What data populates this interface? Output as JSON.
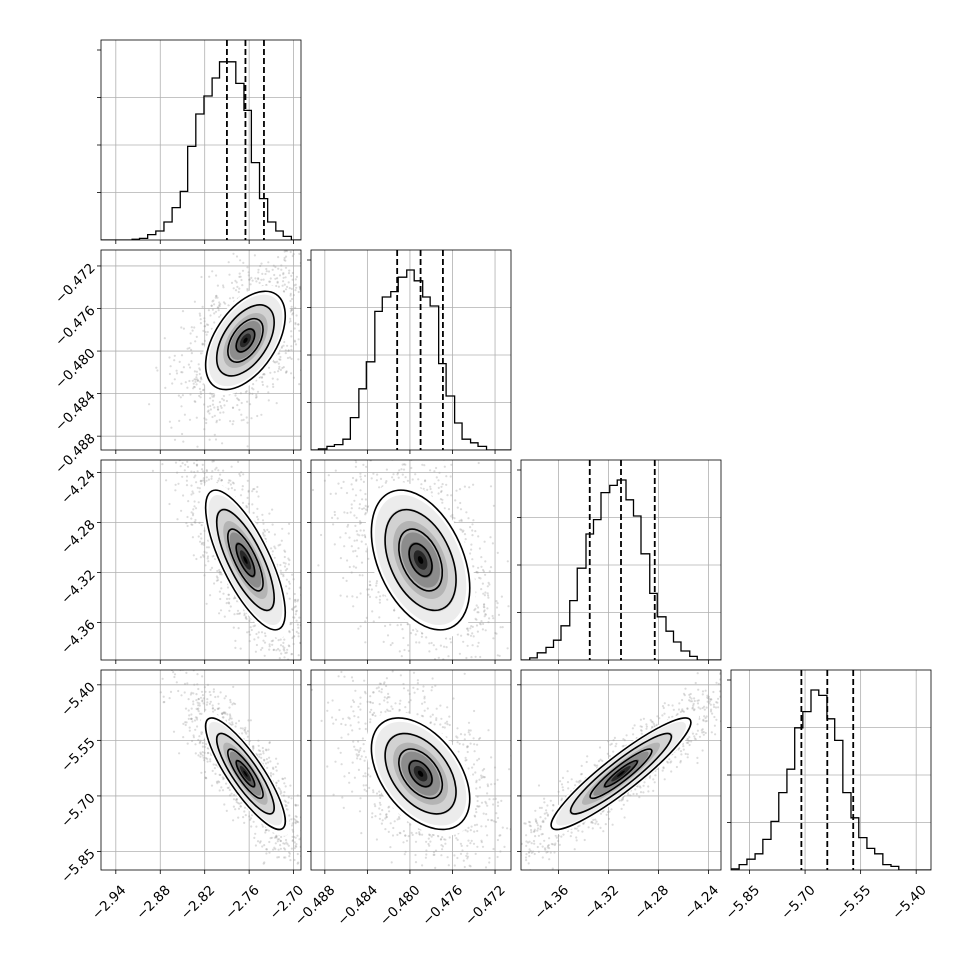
{
  "chart_data": {
    "type": "corner",
    "grid": true,
    "parameters": [
      {
        "range": [
          -2.96,
          -2.69
        ],
        "ticks": [
          -2.94,
          -2.88,
          -2.82,
          -2.76,
          -2.7
        ],
        "tick_labels": [
          "−2.94",
          "−2.88",
          "−2.82",
          "−2.76",
          "−2.70"
        ],
        "quantiles": [
          -2.79,
          -2.765,
          -2.74
        ],
        "hist_bins": [
          -2.96,
          -2.95,
          -2.94,
          -2.929,
          -2.918,
          -2.908,
          -2.897,
          -2.886,
          -2.875,
          -2.864,
          -2.853,
          -2.843,
          -2.832,
          -2.821,
          -2.81,
          -2.8,
          -2.789,
          -2.778,
          -2.767,
          -2.757,
          -2.746,
          -2.735,
          -2.724,
          -2.714,
          -2.703,
          -2.69
        ],
        "hist_values": [
          0.0,
          0.0,
          0.0,
          0.0,
          0.004,
          0.009,
          0.03,
          0.05,
          0.1,
          0.18,
          0.27,
          0.52,
          0.7,
          0.8,
          0.9,
          0.99,
          0.99,
          0.87,
          0.72,
          0.43,
          0.23,
          0.1,
          0.05,
          0.02,
          0.0
        ]
      },
      {
        "range": [
          -0.4893,
          -0.4705
        ],
        "ticks": [
          -0.488,
          -0.484,
          -0.48,
          -0.476,
          -0.472
        ],
        "tick_labels": [
          "−0.488",
          "−0.484",
          "−0.480",
          "−0.476",
          "−0.472"
        ],
        "quantiles": [
          -0.4812,
          -0.479,
          -0.4769
        ],
        "hist_bins": [
          -0.4893,
          -0.4886,
          -0.4878,
          -0.4871,
          -0.4863,
          -0.4856,
          -0.4848,
          -0.4841,
          -0.4833,
          -0.4826,
          -0.4818,
          -0.4811,
          -0.4803,
          -0.4796,
          -0.4788,
          -0.4781,
          -0.4773,
          -0.4766,
          -0.4758,
          -0.4751,
          -0.4743,
          -0.4736,
          -0.4728,
          -0.4721,
          -0.4713,
          -0.4705
        ],
        "hist_values": [
          0.0,
          0.006,
          0.02,
          0.03,
          0.06,
          0.18,
          0.34,
          0.49,
          0.77,
          0.85,
          0.88,
          0.96,
          1.0,
          0.94,
          0.85,
          0.8,
          0.48,
          0.3,
          0.15,
          0.06,
          0.04,
          0.02,
          0.0,
          0.0,
          0.0
        ]
      },
      {
        "range": [
          -4.39,
          -4.23
        ],
        "ticks": [
          -4.36,
          -4.32,
          -4.28,
          -4.24
        ],
        "tick_labels": [
          "−4.36",
          "−4.32",
          "−4.28",
          "−4.24"
        ],
        "quantiles": [
          -4.335,
          -4.31,
          -4.283
        ],
        "hist_bins": [
          -4.39,
          -4.383,
          -4.377,
          -4.37,
          -4.364,
          -4.358,
          -4.351,
          -4.345,
          -4.338,
          -4.332,
          -4.326,
          -4.319,
          -4.313,
          -4.306,
          -4.3,
          -4.294,
          -4.287,
          -4.281,
          -4.274,
          -4.268,
          -4.262,
          -4.255,
          -4.249,
          -4.242,
          -4.236,
          -4.23
        ],
        "hist_values": [
          0.0,
          0.012,
          0.04,
          0.07,
          0.11,
          0.19,
          0.33,
          0.51,
          0.7,
          0.78,
          0.93,
          0.97,
          1.0,
          0.89,
          0.8,
          0.59,
          0.37,
          0.24,
          0.16,
          0.1,
          0.05,
          0.02,
          0.0,
          0.0,
          0.0
        ]
      },
      {
        "range": [
          -5.9,
          -5.36
        ],
        "ticks": [
          -5.85,
          -5.7,
          -5.55,
          -5.4
        ],
        "tick_labels": [
          "−5.85",
          "−5.70",
          "−5.55",
          "−5.40"
        ],
        "quantiles": [
          -5.71,
          -5.64,
          -5.57
        ],
        "hist_bins": [
          -5.9,
          -5.878,
          -5.857,
          -5.835,
          -5.814,
          -5.792,
          -5.771,
          -5.749,
          -5.728,
          -5.706,
          -5.684,
          -5.663,
          -5.641,
          -5.62,
          -5.598,
          -5.576,
          -5.555,
          -5.533,
          -5.512,
          -5.49,
          -5.468,
          -5.447,
          -5.425,
          -5.404,
          -5.382,
          -5.36
        ],
        "hist_values": [
          0.006,
          0.03,
          0.06,
          0.09,
          0.17,
          0.27,
          0.43,
          0.56,
          0.79,
          0.88,
          1.0,
          0.97,
          0.84,
          0.72,
          0.43,
          0.29,
          0.18,
          0.12,
          0.09,
          0.03,
          0.02,
          0.0,
          0.0,
          0.0,
          0.0
        ]
      }
    ],
    "pairs": [
      {
        "x_param": 0,
        "y_param": 1,
        "correlation": 0.5
      },
      {
        "x_param": 0,
        "y_param": 2,
        "correlation": -0.75
      },
      {
        "x_param": 1,
        "y_param": 2,
        "correlation": -0.4
      },
      {
        "x_param": 0,
        "y_param": 3,
        "correlation": -0.85
      },
      {
        "x_param": 1,
        "y_param": 3,
        "correlation": -0.45
      },
      {
        "x_param": 2,
        "y_param": 3,
        "correlation": 0.92
      }
    ]
  }
}
